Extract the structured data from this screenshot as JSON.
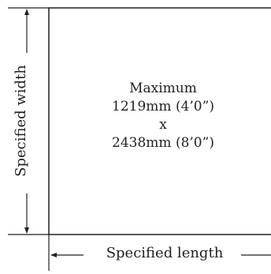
{
  "panel": {
    "line1": "Maximum",
    "line2": "1219mm (4’0”)",
    "line3": "x",
    "line4": "2438mm (8’0”)"
  },
  "labels": {
    "length": "Specified length",
    "width": "Specified width"
  },
  "colors": {
    "line": "#231f20",
    "text": "#231f20"
  }
}
